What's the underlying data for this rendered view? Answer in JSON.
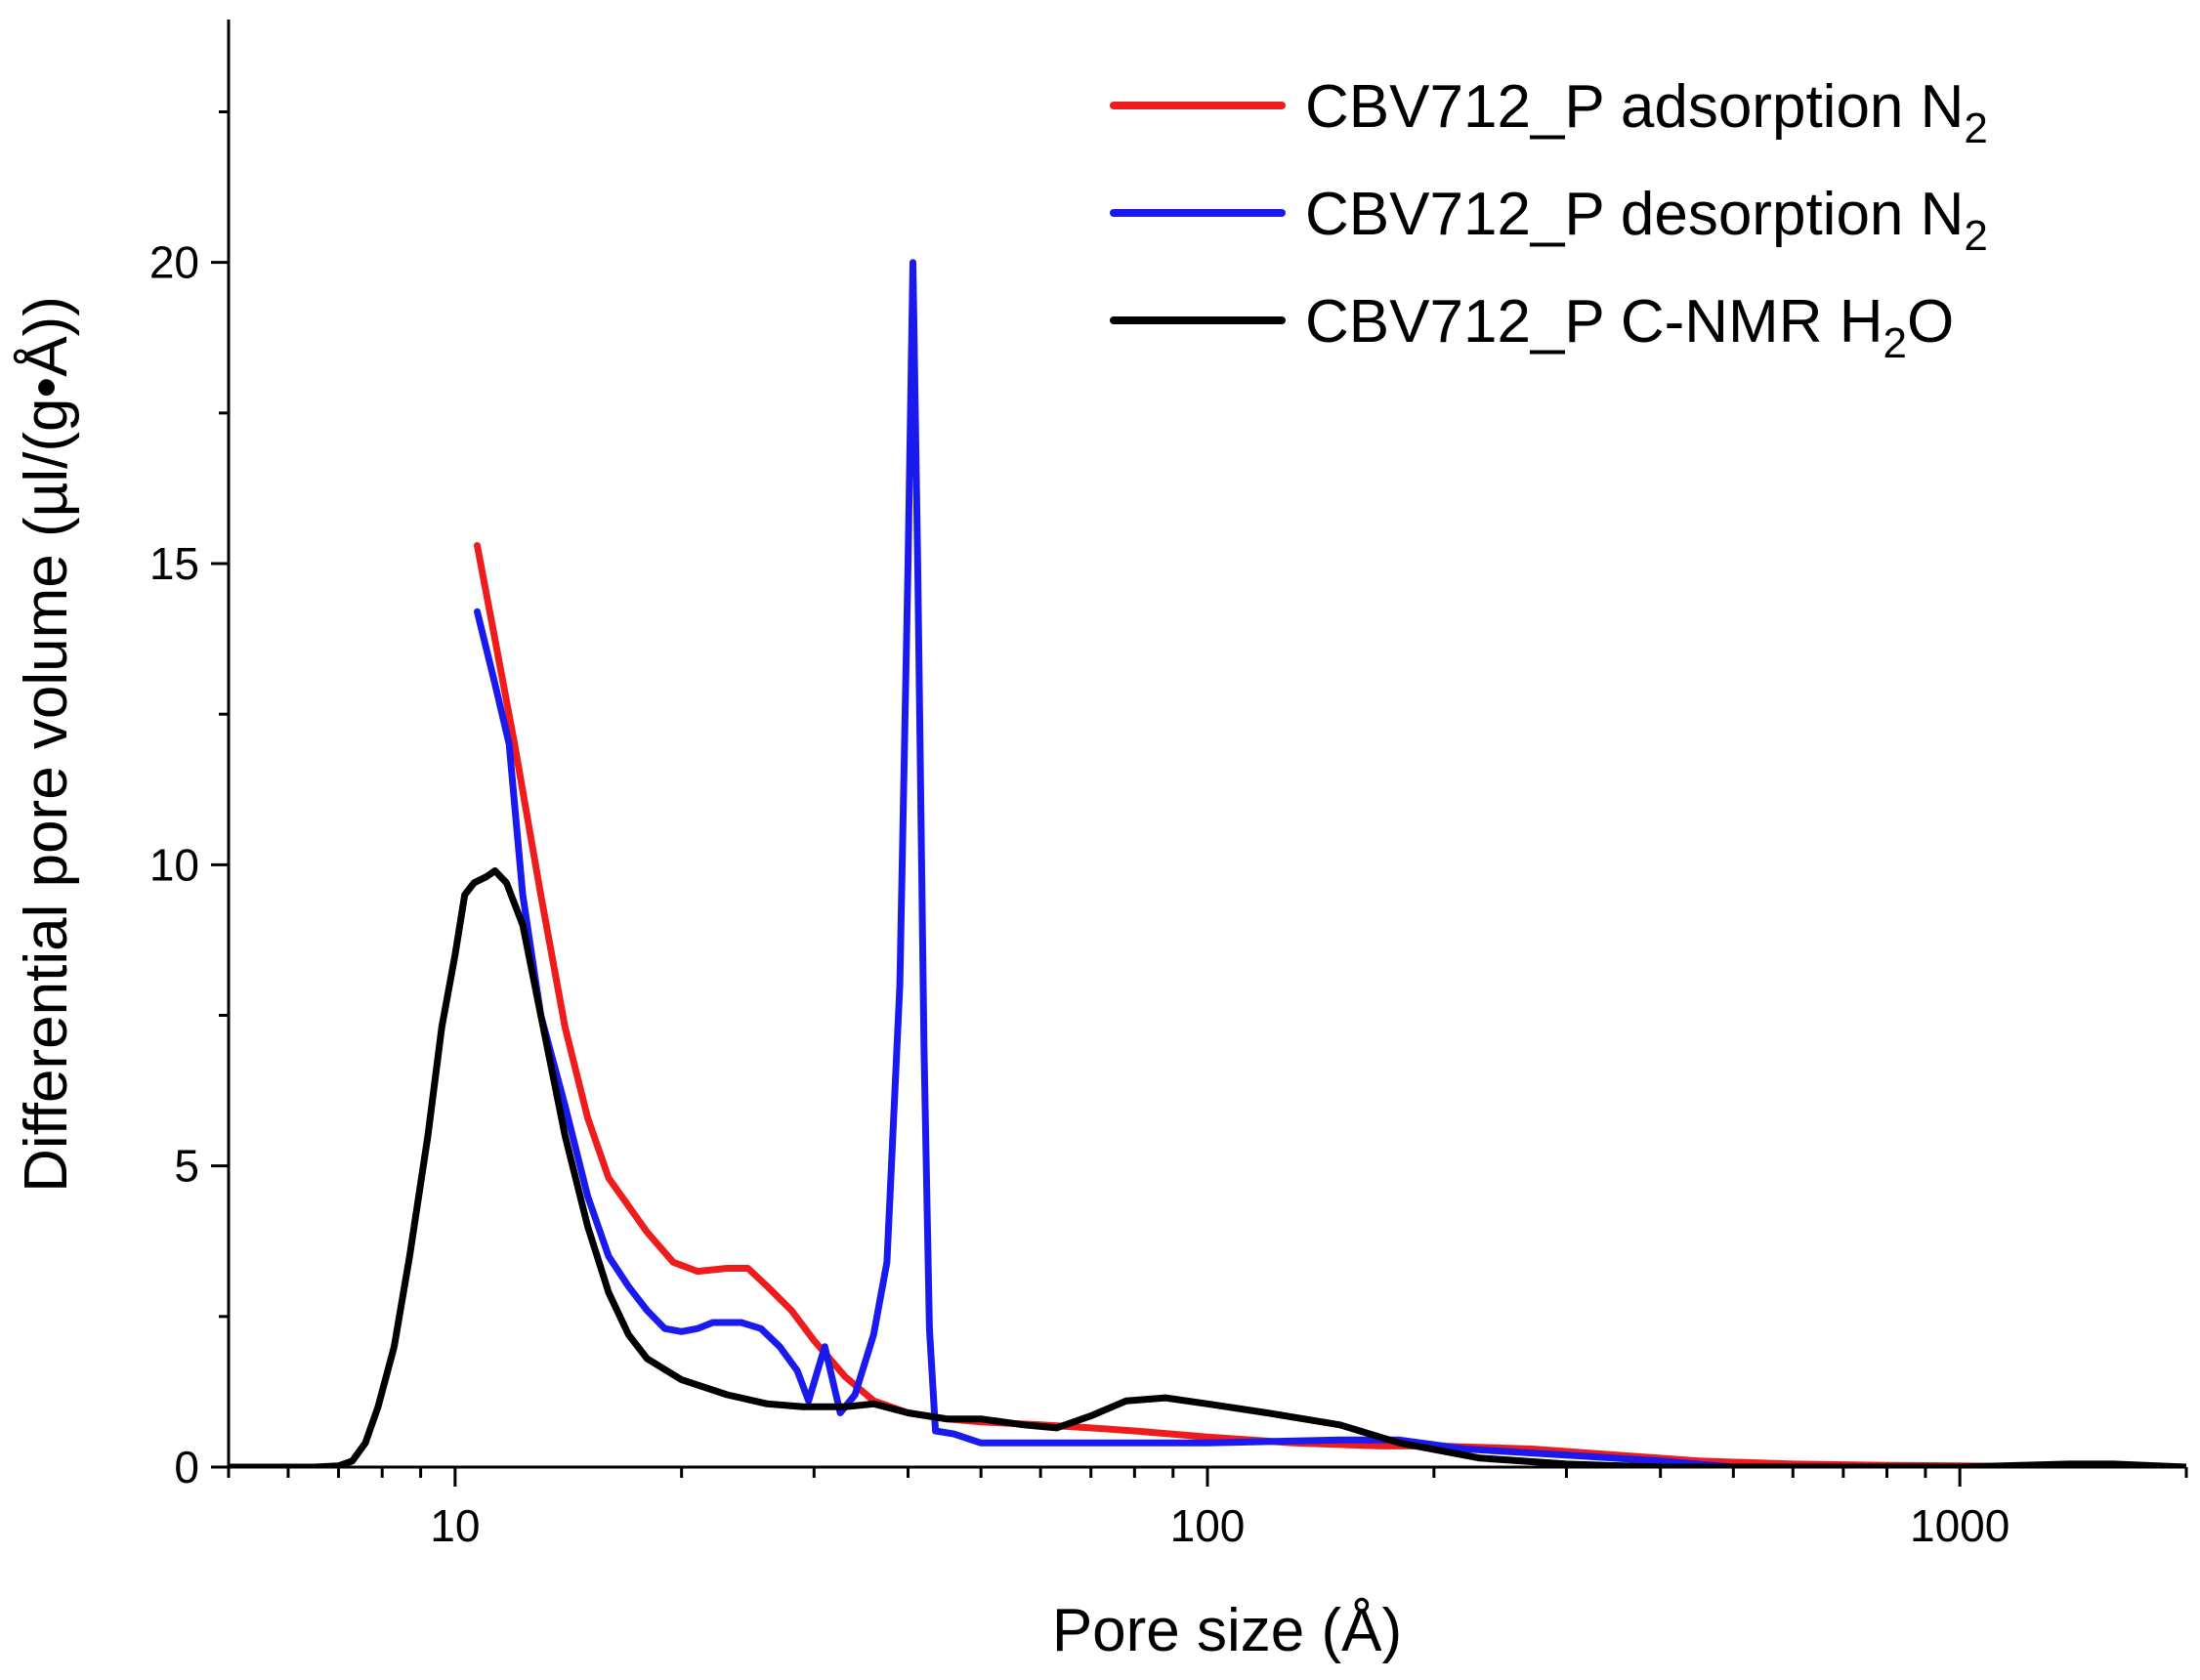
{
  "chart_data": {
    "type": "line",
    "xlabel": "Pore size (Å)",
    "ylabel": "Differential pore volume (µl/(g•Å))",
    "x_scale": "log",
    "xlim": [
      5,
      2000
    ],
    "ylim": [
      0,
      24
    ],
    "x_ticks": [
      10,
      100,
      1000
    ],
    "x_tick_labels": [
      "10",
      "100",
      "1000"
    ],
    "y_ticks": [
      0,
      5,
      10,
      15,
      20
    ],
    "y_tick_labels": [
      "0",
      "5",
      "10",
      "15",
      "20"
    ],
    "legend_placement": "top-right",
    "grid": false,
    "series": [
      {
        "name": "CBV712_P adsorption N",
        "subscript": "2",
        "color": "#ee1c1c",
        "points": [
          [
            10.7,
            15.3
          ],
          [
            11.2,
            14.0
          ],
          [
            12.0,
            12.0
          ],
          [
            13.0,
            9.5
          ],
          [
            14.0,
            7.3
          ],
          [
            15.0,
            5.8
          ],
          [
            16.0,
            4.8
          ],
          [
            18.0,
            3.9
          ],
          [
            19.5,
            3.4
          ],
          [
            21.0,
            3.25
          ],
          [
            23.0,
            3.3
          ],
          [
            24.5,
            3.3
          ],
          [
            26.0,
            3.0
          ],
          [
            28.0,
            2.6
          ],
          [
            30.0,
            2.1
          ],
          [
            33.0,
            1.5
          ],
          [
            36.0,
            1.1
          ],
          [
            40.0,
            0.9
          ],
          [
            45.0,
            0.8
          ],
          [
            50.0,
            0.75
          ],
          [
            60.0,
            0.7
          ],
          [
            70.0,
            0.65
          ],
          [
            80.0,
            0.6
          ],
          [
            100.0,
            0.5
          ],
          [
            130.0,
            0.4
          ],
          [
            170.0,
            0.35
          ],
          [
            200.0,
            0.35
          ],
          [
            270.0,
            0.3
          ],
          [
            350.0,
            0.2
          ],
          [
            450.0,
            0.1
          ],
          [
            600.0,
            0.05
          ],
          [
            800.0,
            0.03
          ],
          [
            1000.0,
            0.02
          ],
          [
            1300.0,
            0.0
          ],
          [
            1600.0,
            0.0
          ]
        ]
      },
      {
        "name": "CBV712_P desorption N",
        "subscript": "2",
        "color": "#1a1aee",
        "points": [
          [
            10.7,
            14.2
          ],
          [
            11.3,
            13.0
          ],
          [
            11.8,
            12.0
          ],
          [
            12.3,
            9.5
          ],
          [
            13.0,
            7.5
          ],
          [
            14.0,
            6.0
          ],
          [
            15.0,
            4.5
          ],
          [
            16.0,
            3.5
          ],
          [
            17.0,
            3.0
          ],
          [
            18.0,
            2.6
          ],
          [
            19.0,
            2.3
          ],
          [
            20.0,
            2.25
          ],
          [
            21.0,
            2.3
          ],
          [
            22.0,
            2.4
          ],
          [
            24.0,
            2.4
          ],
          [
            25.5,
            2.3
          ],
          [
            27.0,
            2.0
          ],
          [
            28.5,
            1.6
          ],
          [
            29.5,
            1.1
          ],
          [
            31.0,
            2.0
          ],
          [
            32.5,
            0.9
          ],
          [
            34.0,
            1.2
          ],
          [
            36.0,
            2.2
          ],
          [
            37.5,
            3.4
          ],
          [
            39.0,
            8.0
          ],
          [
            40.0,
            15.0
          ],
          [
            40.6,
            20.0
          ],
          [
            41.2,
            15.0
          ],
          [
            42.0,
            7.0
          ],
          [
            42.7,
            2.3
          ],
          [
            43.5,
            0.6
          ],
          [
            46.0,
            0.55
          ],
          [
            50.0,
            0.4
          ],
          [
            60.0,
            0.4
          ],
          [
            80.0,
            0.4
          ],
          [
            100.0,
            0.4
          ],
          [
            150.0,
            0.45
          ],
          [
            180.0,
            0.45
          ],
          [
            220.0,
            0.3
          ],
          [
            300.0,
            0.2
          ],
          [
            400.0,
            0.1
          ],
          [
            500.0,
            0.0
          ],
          [
            800.0,
            0.0
          ],
          [
            2000.0,
            0.0
          ]
        ]
      },
      {
        "name": "CBV712_P C-NMR H",
        "subscript": "2",
        "name_suffix": "O",
        "color": "#000000",
        "points": [
          [
            5.0,
            0.0
          ],
          [
            6.5,
            0.0
          ],
          [
            7.0,
            0.02
          ],
          [
            7.3,
            0.1
          ],
          [
            7.6,
            0.4
          ],
          [
            7.9,
            1.0
          ],
          [
            8.3,
            2.0
          ],
          [
            8.7,
            3.5
          ],
          [
            9.2,
            5.5
          ],
          [
            9.6,
            7.3
          ],
          [
            10.0,
            8.5
          ],
          [
            10.3,
            9.5
          ],
          [
            10.6,
            9.7
          ],
          [
            11.0,
            9.8
          ],
          [
            11.3,
            9.9
          ],
          [
            11.7,
            9.7
          ],
          [
            12.3,
            9.0
          ],
          [
            13.0,
            7.5
          ],
          [
            14.0,
            5.5
          ],
          [
            15.0,
            4.0
          ],
          [
            16.0,
            2.9
          ],
          [
            17.0,
            2.2
          ],
          [
            18.0,
            1.8
          ],
          [
            20.0,
            1.45
          ],
          [
            23.0,
            1.2
          ],
          [
            26.0,
            1.05
          ],
          [
            29.0,
            1.0
          ],
          [
            33.0,
            1.0
          ],
          [
            36.0,
            1.05
          ],
          [
            40.0,
            0.9
          ],
          [
            45.0,
            0.8
          ],
          [
            50.0,
            0.8
          ],
          [
            57.0,
            0.7
          ],
          [
            63.0,
            0.65
          ],
          [
            70.0,
            0.85
          ],
          [
            78.0,
            1.1
          ],
          [
            88.0,
            1.15
          ],
          [
            100.0,
            1.05
          ],
          [
            120.0,
            0.9
          ],
          [
            150.0,
            0.7
          ],
          [
            180.0,
            0.4
          ],
          [
            230.0,
            0.15
          ],
          [
            300.0,
            0.05
          ],
          [
            400.0,
            0.0
          ],
          [
            1000.0,
            0.0
          ],
          [
            1400.0,
            0.05
          ],
          [
            1600.0,
            0.05
          ],
          [
            2000.0,
            0.0
          ]
        ]
      }
    ]
  }
}
